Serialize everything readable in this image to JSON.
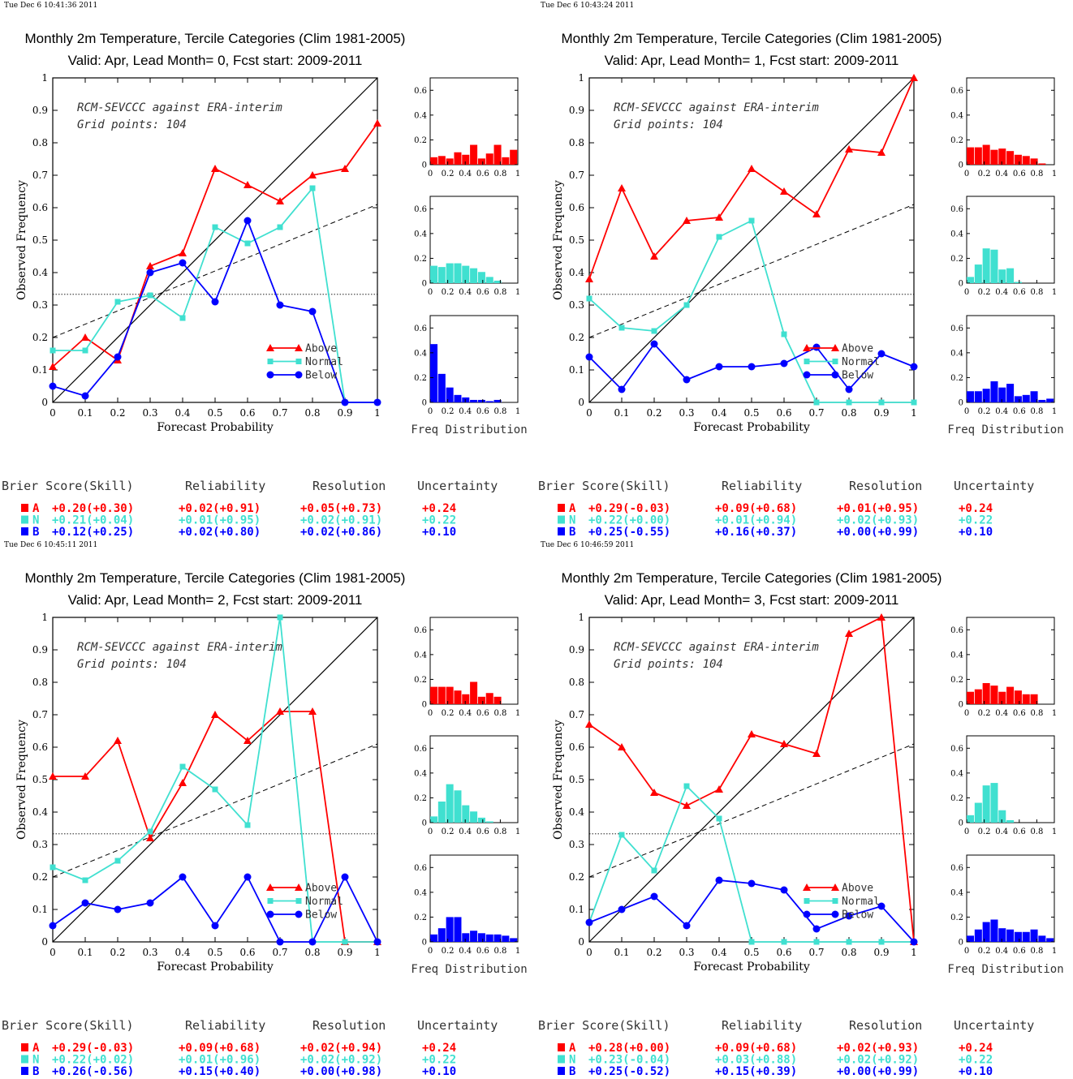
{
  "colors": {
    "A": "#ff0000",
    "N": "#40e0d0",
    "B": "#0000ff"
  },
  "common": {
    "title_line1": "Monthly 2m Temperature, Tercile Categories (Clim 1981-2005)",
    "annotation_line1": "RCM-SEVCCC against ERA-interim",
    "annotation_line2": "Grid points:  104",
    "xlabel": "Forecast Probability",
    "ylabel": "Observed Frequency",
    "freq_label": "Freq Distribution",
    "legend": [
      "Above",
      "Normal",
      "Below"
    ],
    "brier_headers": [
      "Brier Score(Skill)",
      "Reliability",
      "Resolution",
      "Uncertainty"
    ],
    "x_ticks": [
      "0",
      "0.1",
      "0.2",
      "0.3",
      "0.4",
      "0.5",
      "0.6",
      "0.7",
      "0.8",
      "0.9",
      "1"
    ],
    "y_ticks": [
      "0",
      "0.1",
      "0.2",
      "0.3",
      "0.4",
      "0.5",
      "0.6",
      "0.7",
      "0.8",
      "0.9",
      "1"
    ],
    "hist_y_ticks": [
      "0",
      "0.2",
      "0.4",
      "0.6"
    ],
    "hist_x_ticks": [
      "0",
      "0.2",
      "0.4",
      "0.6",
      "0.8",
      "1"
    ]
  },
  "chart_data": [
    {
      "type": "line",
      "timestamp": "Tue Dec  6 10:41:36 2011",
      "title_line2": "Valid: Apr, Lead Month= 0, Fcst start: 2009-2011",
      "x": [
        0,
        0.1,
        0.2,
        0.3,
        0.4,
        0.5,
        0.6,
        0.7,
        0.8,
        0.9,
        1
      ],
      "xlim": [
        0,
        1
      ],
      "ylim": [
        0,
        1
      ],
      "climatology": 0.333,
      "skill_line": [
        [
          0,
          0.2
        ],
        [
          1,
          0.61
        ]
      ],
      "series": [
        {
          "name": "Above",
          "values": [
            0.11,
            0.2,
            0.13,
            0.42,
            0.46,
            0.72,
            0.67,
            0.62,
            0.7,
            0.72,
            0.86
          ]
        },
        {
          "name": "Normal",
          "values": [
            0.16,
            0.16,
            0.31,
            0.33,
            0.26,
            0.54,
            0.49,
            0.54,
            0.66,
            0,
            0
          ]
        },
        {
          "name": "Below",
          "values": [
            0.05,
            0.02,
            0.14,
            0.4,
            0.43,
            0.31,
            0.56,
            0.3,
            0.28,
            0,
            0
          ]
        }
      ],
      "hist": {
        "A": [
          0.06,
          0.07,
          0.05,
          0.1,
          0.08,
          0.16,
          0.05,
          0.09,
          0.16,
          0.06,
          0.12
        ],
        "N": [
          0.14,
          0.13,
          0.16,
          0.16,
          0.14,
          0.12,
          0.09,
          0.05,
          0.02,
          0,
          0
        ],
        "B": [
          0.47,
          0.23,
          0.12,
          0.06,
          0.04,
          0.02,
          0.02,
          0.01,
          0.02,
          0,
          0
        ]
      },
      "brier": [
        {
          "cat": "A",
          "bs": "+0.20(+0.30)",
          "rel": "+0.02(+0.91)",
          "res": "+0.05(+0.73)",
          "unc": "+0.24"
        },
        {
          "cat": "N",
          "bs": "+0.21(+0.04)",
          "rel": "+0.01(+0.95)",
          "res": "+0.02(+0.91)",
          "unc": "+0.22"
        },
        {
          "cat": "B",
          "bs": "+0.12(+0.25)",
          "rel": "+0.02(+0.80)",
          "res": "+0.02(+0.86)",
          "unc": "+0.10"
        }
      ]
    },
    {
      "type": "line",
      "timestamp": "Tue Dec  6 10:43:24 2011",
      "title_line2": "Valid: Apr, Lead Month= 1, Fcst start: 2009-2011",
      "x": [
        0,
        0.1,
        0.2,
        0.3,
        0.4,
        0.5,
        0.6,
        0.7,
        0.8,
        0.9,
        1
      ],
      "xlim": [
        0,
        1
      ],
      "ylim": [
        0,
        1
      ],
      "climatology": 0.333,
      "skill_line": [
        [
          0,
          0.2
        ],
        [
          1,
          0.61
        ]
      ],
      "series": [
        {
          "name": "Above",
          "values": [
            0.38,
            0.66,
            0.45,
            0.56,
            0.57,
            0.72,
            0.65,
            0.58,
            0.78,
            0.77,
            1.0
          ]
        },
        {
          "name": "Normal",
          "values": [
            0.32,
            0.23,
            0.22,
            0.3,
            0.51,
            0.56,
            0.21,
            0,
            0,
            0,
            0
          ]
        },
        {
          "name": "Below",
          "values": [
            0.14,
            0.04,
            0.18,
            0.07,
            0.11,
            0.11,
            0.12,
            0.17,
            0.04,
            0.15,
            0.11
          ]
        }
      ],
      "hist": {
        "A": [
          0.14,
          0.14,
          0.16,
          0.12,
          0.13,
          0.11,
          0.08,
          0.07,
          0.05,
          0.01,
          0
        ],
        "N": [
          0.05,
          0.15,
          0.28,
          0.27,
          0.11,
          0.12,
          0.01,
          0,
          0,
          0,
          0
        ],
        "B": [
          0.09,
          0.09,
          0.11,
          0.17,
          0.12,
          0.15,
          0.05,
          0.06,
          0.09,
          0.02,
          0.03
        ]
      },
      "brier": [
        {
          "cat": "A",
          "bs": "+0.29(-0.03)",
          "rel": "+0.09(+0.68)",
          "res": "+0.01(+0.95)",
          "unc": "+0.24"
        },
        {
          "cat": "N",
          "bs": "+0.22(+0.00)",
          "rel": "+0.01(+0.94)",
          "res": "+0.02(+0.93)",
          "unc": "+0.22"
        },
        {
          "cat": "B",
          "bs": "+0.25(-0.55)",
          "rel": "+0.16(+0.37)",
          "res": "+0.00(+0.99)",
          "unc": "+0.10"
        }
      ]
    },
    {
      "type": "line",
      "timestamp": "Tue Dec  6 10:45:11 2011",
      "title_line2": "Valid: Apr, Lead Month= 2, Fcst start: 2009-2011",
      "x": [
        0,
        0.1,
        0.2,
        0.3,
        0.4,
        0.5,
        0.6,
        0.7,
        0.8,
        0.9,
        1
      ],
      "xlim": [
        0,
        1
      ],
      "ylim": [
        0,
        1
      ],
      "climatology": 0.333,
      "skill_line": [
        [
          0,
          0.2
        ],
        [
          1,
          0.61
        ]
      ],
      "series": [
        {
          "name": "Above",
          "values": [
            0.51,
            0.51,
            0.62,
            0.32,
            0.49,
            0.7,
            0.62,
            0.71,
            0.71,
            0,
            0
          ]
        },
        {
          "name": "Normal",
          "values": [
            0.23,
            0.19,
            0.25,
            0.34,
            0.54,
            0.47,
            0.36,
            1.0,
            0,
            0,
            0
          ]
        },
        {
          "name": "Below",
          "values": [
            0.05,
            0.12,
            0.1,
            0.12,
            0.2,
            0.05,
            0.2,
            0,
            0,
            0.2,
            0
          ]
        }
      ],
      "hist": {
        "A": [
          0.14,
          0.14,
          0.14,
          0.11,
          0.08,
          0.18,
          0.06,
          0.09,
          0.06,
          0,
          0
        ],
        "N": [
          0.05,
          0.17,
          0.31,
          0.26,
          0.14,
          0.09,
          0.04,
          0.01,
          0,
          0,
          0
        ],
        "B": [
          0.06,
          0.11,
          0.2,
          0.2,
          0.07,
          0.09,
          0.07,
          0.06,
          0.06,
          0.05,
          0.03
        ]
      },
      "brier": [
        {
          "cat": "A",
          "bs": "+0.29(-0.03)",
          "rel": "+0.09(+0.68)",
          "res": "+0.02(+0.94)",
          "unc": "+0.24"
        },
        {
          "cat": "N",
          "bs": "+0.22(+0.02)",
          "rel": "+0.01(+0.96)",
          "res": "+0.02(+0.92)",
          "unc": "+0.22"
        },
        {
          "cat": "B",
          "bs": "+0.26(-0.56)",
          "rel": "+0.15(+0.40)",
          "res": "+0.00(+0.98)",
          "unc": "+0.10"
        }
      ]
    },
    {
      "type": "line",
      "timestamp": "Tue Dec  6 10:46:59 2011",
      "title_line2": "Valid: Apr, Lead Month= 3, Fcst start: 2009-2011",
      "x": [
        0,
        0.1,
        0.2,
        0.3,
        0.4,
        0.5,
        0.6,
        0.7,
        0.8,
        0.9,
        1
      ],
      "xlim": [
        0,
        1
      ],
      "ylim": [
        0,
        1
      ],
      "climatology": 0.333,
      "skill_line": [
        [
          0,
          0.2
        ],
        [
          1,
          0.61
        ]
      ],
      "series": [
        {
          "name": "Above",
          "values": [
            0.67,
            0.6,
            0.46,
            0.42,
            0.47,
            0.64,
            0.61,
            0.58,
            0.95,
            1.0,
            0
          ]
        },
        {
          "name": "Normal",
          "values": [
            0.06,
            0.33,
            0.22,
            0.48,
            0.38,
            0,
            0,
            0,
            0,
            0,
            0
          ]
        },
        {
          "name": "Below",
          "values": [
            0.06,
            0.1,
            0.14,
            0.05,
            0.19,
            0.18,
            0.16,
            0.04,
            0.08,
            0.11,
            0
          ]
        }
      ],
      "hist": {
        "A": [
          0.1,
          0.12,
          0.17,
          0.15,
          0.1,
          0.14,
          0.11,
          0.08,
          0.08,
          0,
          0
        ],
        "N": [
          0.06,
          0.16,
          0.3,
          0.32,
          0.1,
          0.02,
          0,
          0,
          0,
          0,
          0
        ],
        "B": [
          0.05,
          0.1,
          0.16,
          0.18,
          0.11,
          0.1,
          0.08,
          0.08,
          0.1,
          0.05,
          0.03
        ]
      },
      "brier": [
        {
          "cat": "A",
          "bs": "+0.28(+0.00)",
          "rel": "+0.09(+0.68)",
          "res": "+0.02(+0.93)",
          "unc": "+0.24"
        },
        {
          "cat": "N",
          "bs": "+0.23(-0.04)",
          "rel": "+0.03(+0.88)",
          "res": "+0.02(+0.92)",
          "unc": "+0.22"
        },
        {
          "cat": "B",
          "bs": "+0.25(-0.52)",
          "rel": "+0.15(+0.39)",
          "res": "+0.00(+0.99)",
          "unc": "+0.10"
        }
      ]
    }
  ]
}
